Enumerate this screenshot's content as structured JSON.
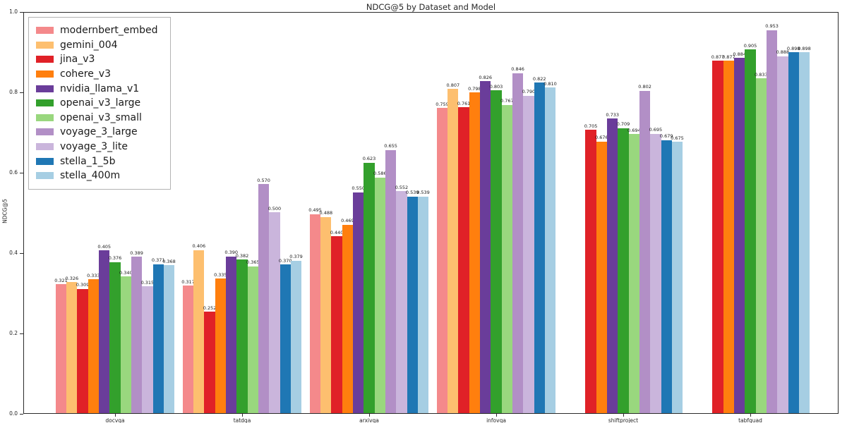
{
  "chart_data": {
    "type": "bar",
    "title": "NDCG@5 by Dataset and Model",
    "xlabel": "",
    "ylabel": "NDCG@5",
    "ylim": [
      0.0,
      1.0
    ],
    "yticks": [
      0.0,
      0.2,
      0.4,
      0.6,
      0.8,
      1.0
    ],
    "grid": false,
    "legend_position": "upper-left",
    "bar_value_labels": true,
    "value_label_decimals": 3,
    "categories": [
      "docvqa",
      "tatdqa",
      "arxivqa",
      "infovqa",
      "shiftproject",
      "tabfquad"
    ],
    "series": [
      {
        "name": "modernbert_embed",
        "color": "#f4898b",
        "values": [
          0.321,
          0.317,
          0.495,
          0.759,
          null,
          null
        ]
      },
      {
        "name": "gemini_004",
        "color": "#fdbf6f",
        "values": [
          0.326,
          0.406,
          0.488,
          0.807,
          null,
          null
        ]
      },
      {
        "name": "jina_v3",
        "color": "#e02127",
        "values": [
          0.309,
          0.252,
          0.44,
          0.761,
          0.705,
          0.877
        ]
      },
      {
        "name": "cohere_v3",
        "color": "#ff7f0e",
        "values": [
          0.333,
          0.335,
          0.469,
          0.798,
          0.676,
          0.877
        ]
      },
      {
        "name": "nvidia_llama_v1",
        "color": "#6a3d9a",
        "values": [
          0.405,
          0.39,
          0.55,
          0.826,
          0.733,
          0.884
        ]
      },
      {
        "name": "openai_v3_large",
        "color": "#33a02c",
        "values": [
          0.376,
          0.382,
          0.623,
          0.803,
          0.709,
          0.905
        ]
      },
      {
        "name": "openai_v3_small",
        "color": "#99d77e",
        "values": [
          0.34,
          0.365,
          0.586,
          0.767,
          0.694,
          0.833
        ]
      },
      {
        "name": "voyage_3_large",
        "color": "#b28fc6",
        "values": [
          0.389,
          0.57,
          0.655,
          0.846,
          0.802,
          0.953
        ]
      },
      {
        "name": "voyage_3_lite",
        "color": "#cab5dc",
        "values": [
          0.315,
          0.5,
          0.552,
          0.79,
          0.695,
          0.888
        ]
      },
      {
        "name": "stella_1_5b",
        "color": "#1f77b4",
        "values": [
          0.371,
          0.37,
          0.539,
          0.822,
          0.679,
          0.898
        ]
      },
      {
        "name": "stella_400m",
        "color": "#a6cee3",
        "values": [
          0.368,
          0.379,
          0.539,
          0.81,
          0.675,
          0.898
        ]
      }
    ]
  }
}
